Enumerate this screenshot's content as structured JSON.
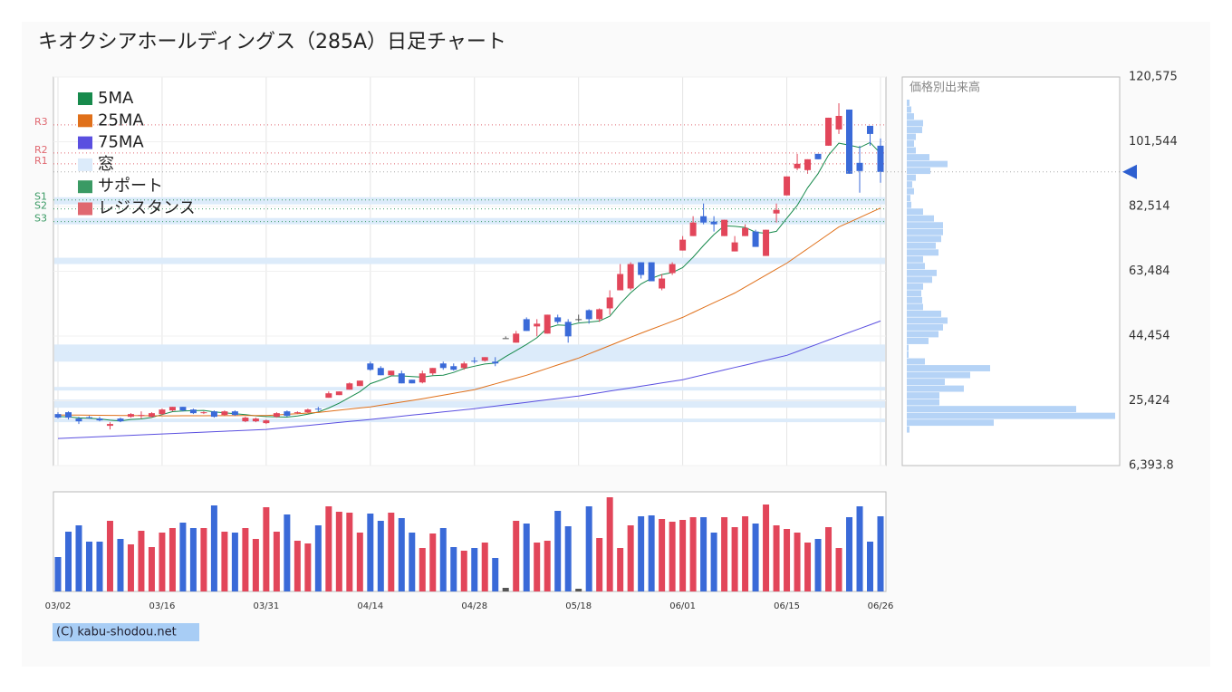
{
  "copyright": "(C) kabu-shodou.net",
  "chart_data": [
    {
      "type": "candlestick",
      "title": "キオクシアホールディングス（285A）日足チャート",
      "categories": [
        "03/02",
        null,
        null,
        null,
        null,
        null,
        null,
        null,
        null,
        null,
        "03/16",
        null,
        null,
        null,
        null,
        null,
        null,
        null,
        null,
        null,
        "03/31",
        null,
        null,
        null,
        null,
        null,
        null,
        null,
        null,
        null,
        "04/14",
        null,
        null,
        null,
        null,
        null,
        null,
        null,
        null,
        null,
        "04/28",
        null,
        null,
        null,
        null,
        null,
        null,
        null,
        null,
        null,
        "05/18",
        null,
        null,
        null,
        null,
        null,
        null,
        null,
        null,
        null,
        "06/01",
        null,
        null,
        null,
        null,
        null,
        null,
        null,
        null,
        null,
        "06/15",
        null,
        null,
        null,
        null,
        null,
        null,
        null,
        null,
        "06/26"
      ],
      "open": [
        21530,
        22060,
        20200,
        20600,
        20200,
        18080,
        20200,
        20730,
        21000,
        20730,
        21530,
        22590,
        23650,
        22860,
        21790,
        22320,
        21260,
        22320,
        19400,
        19400,
        18870,
        20730,
        22320,
        21790,
        22060,
        23120,
        26310,
        27100,
        28700,
        29760,
        36400,
        35070,
        32940,
        33480,
        31620,
        30820,
        33480,
        36400,
        35600,
        35070,
        37190,
        37190,
        36930,
        43830,
        42500,
        49410,
        47280,
        45160,
        49940,
        48610,
        49410,
        52060,
        49410,
        52590,
        57900,
        58430,
        66130,
        66130,
        58430,
        62950,
        69580,
        73830,
        79670,
        78080,
        73830,
        69320,
        73830,
        75160,
        67990,
        80470,
        85780,
        93740,
        93210,
        97990,
        100380,
        105160,
        111000,
        95340,
        106220,
        100380
      ],
      "high": [
        22060,
        22320,
        20730,
        21000,
        20730,
        19140,
        20470,
        21790,
        22320,
        22060,
        23120,
        23650,
        23650,
        23120,
        22320,
        22590,
        22590,
        22590,
        20730,
        20470,
        19930,
        22060,
        22590,
        22320,
        23120,
        23650,
        28170,
        28170,
        30820,
        31350,
        36930,
        35600,
        34270,
        34270,
        31620,
        34270,
        35070,
        36930,
        36400,
        36930,
        38250,
        38250,
        38250,
        44360,
        45950,
        49940,
        49410,
        50730,
        50730,
        49410,
        50730,
        52330,
        52590,
        57900,
        65600,
        66130,
        66130,
        66130,
        62680,
        66130,
        73830,
        79670,
        83390,
        79670,
        78610,
        73830,
        77280,
        75690,
        75690,
        83390,
        91350,
        97990,
        96400,
        97990,
        108610,
        112860,
        111000,
        100380,
        106220,
        102510
      ],
      "low": [
        20200,
        19930,
        18610,
        20200,
        19400,
        17010,
        19140,
        20470,
        20200,
        20470,
        21260,
        22320,
        22320,
        21530,
        21530,
        20470,
        21000,
        21000,
        19140,
        19140,
        18610,
        20470,
        20730,
        21530,
        21790,
        22320,
        26310,
        27100,
        28700,
        29760,
        34270,
        32940,
        32940,
        30550,
        30550,
        30550,
        32940,
        34540,
        34270,
        34540,
        36400,
        36930,
        35600,
        43830,
        42500,
        45950,
        44360,
        45160,
        48080,
        42500,
        48610,
        48080,
        48610,
        50730,
        57900,
        57900,
        61350,
        60560,
        57900,
        62410,
        69580,
        73830,
        77280,
        75160,
        73830,
        69320,
        73830,
        70650,
        67990,
        77810,
        85780,
        93210,
        92150,
        96400,
        100380,
        103830,
        92150,
        86575,
        100380,
        89500
      ],
      "close": [
        20470,
        20470,
        19400,
        20470,
        19670,
        18610,
        19400,
        21530,
        21260,
        21790,
        22860,
        23650,
        22590,
        21790,
        22060,
        20730,
        22320,
        21260,
        20470,
        20200,
        19670,
        21790,
        21000,
        22060,
        22860,
        22860,
        27630,
        28170,
        30550,
        31350,
        34540,
        32940,
        34270,
        30550,
        30550,
        33480,
        35070,
        35070,
        34540,
        36400,
        36930,
        38250,
        36400,
        43830,
        45160,
        45950,
        48080,
        50730,
        48610,
        44360,
        49410,
        49410,
        52330,
        55780,
        62680,
        65600,
        62410,
        60560,
        61350,
        65600,
        72770,
        77810,
        77810,
        77280,
        78610,
        71970,
        76220,
        70650,
        75690,
        81530,
        91350,
        95070,
        96400,
        96400,
        108610,
        109140,
        92150,
        92950,
        103830,
        92680
      ],
      "up_color": "#e2465a",
      "down_color": "#3a6ad8",
      "flat_color": "#555555",
      "ylim": [
        6393.8,
        120575
      ],
      "yticks": [
        {
          "value": 120575,
          "label": "120,575"
        },
        {
          "value": 101544,
          "label": "101,544"
        },
        {
          "value": 82514,
          "label": "82,514"
        },
        {
          "value": 63484,
          "label": "63,484"
        },
        {
          "value": 44454,
          "label": "44,454"
        },
        {
          "value": 25424,
          "label": "25,424"
        },
        {
          "value": 6393.8,
          "label": "6,393.8"
        }
      ],
      "grid": true,
      "legend": "top-left",
      "series": [
        {
          "name": "5MA",
          "color": "#178a4c",
          "values": [
            20800,
            20700,
            20400,
            20300,
            20096,
            19724,
            19510,
            19936,
            20094,
            20518,
            21368,
            22218,
            22430,
            22536,
            22590,
            22164,
            21898,
            21632,
            21368,
            20996,
            20784,
            20678,
            20626,
            20944,
            21476,
            22114,
            23282,
            24716,
            26414,
            28112,
            30448,
            31510,
            32730,
            32730,
            32570,
            32358,
            32784,
            32944,
            33742,
            34912,
            35602,
            36238,
            36504,
            38416,
            40168,
            41972,
            43938,
            46804,
            47706,
            47546,
            48276,
            48542,
            48862,
            50296,
            53960,
            57160,
            59760,
            61406,
            62520,
            63104,
            64538,
            67618,
            71068,
            74254,
            76856,
            76696,
            76378,
            74946,
            74628,
            75212,
            79088,
            82858,
            88008,
            92150,
            97566,
            101124,
            100540,
            99850,
            101336,
            98150
          ]
        },
        {
          "name": "25MA",
          "color": "#e0701a",
          "values": [
            21260,
            21230,
            21210,
            21180,
            21160,
            21130,
            21100,
            21080,
            21050,
            21030,
            21000,
            21010,
            21020,
            21030,
            21040,
            21050,
            21060,
            21070,
            21080,
            21090,
            21100,
            21280,
            21460,
            21640,
            21820,
            22000,
            22330,
            22660,
            22990,
            23320,
            23650,
            24120,
            24590,
            25060,
            25530,
            26000,
            26540,
            27080,
            27620,
            28160,
            28700,
            29550,
            30400,
            31240,
            32090,
            32940,
            33950,
            34960,
            35970,
            36980,
            37990,
            39210,
            40430,
            41660,
            42880,
            44100,
            45270,
            46440,
            47600,
            48770,
            49940,
            51370,
            52800,
            54240,
            55670,
            57100,
            58850,
            60610,
            62360,
            64120,
            65870,
            68000,
            70120,
            72250,
            74370,
            76500,
            77890,
            79280,
            80670,
            82060
          ]
        },
        {
          "name": "75MA",
          "color": "#5a4fe0",
          "values": [
            14360,
            14490,
            14630,
            14760,
            14890,
            15030,
            15160,
            15290,
            15420,
            15550,
            15690,
            15820,
            15950,
            16080,
            16220,
            16350,
            16480,
            16610,
            16750,
            16880,
            17010,
            17300,
            17590,
            17890,
            18180,
            18470,
            18760,
            19050,
            19350,
            19640,
            19930,
            20250,
            20570,
            20890,
            21210,
            21530,
            21840,
            22160,
            22480,
            22800,
            23120,
            23490,
            23860,
            24240,
            24610,
            24980,
            25350,
            25720,
            26100,
            26470,
            26840,
            27320,
            27800,
            28270,
            28750,
            29230,
            29710,
            30190,
            30660,
            31140,
            31620,
            32340,
            33050,
            33770,
            34490,
            35210,
            35920,
            36640,
            37360,
            38070,
            38790,
            39910,
            41030,
            42150,
            43280,
            44400,
            45520,
            46640,
            47760,
            48880
          ]
        }
      ],
      "gaps": {
        "name": "窓",
        "color": "#dcebfa",
        "ranges": [
          [
            83130,
            85250
          ],
          [
            77280,
            79140
          ],
          [
            65600,
            67460
          ],
          [
            36930,
            41970
          ],
          [
            28440,
            29500
          ],
          [
            23390,
            25780
          ],
          [
            19140,
            20200
          ]
        ]
      },
      "support": {
        "name": "サポート",
        "color": "#3a9a64",
        "levels": [
          {
            "label": "S1",
            "value": 84450
          },
          {
            "label": "S2",
            "value": 81800
          },
          {
            "label": "S3",
            "value": 78080
          }
        ]
      },
      "resistance": {
        "name": "レジスタンス",
        "color": "#e06870",
        "levels": [
          {
            "label": "R3",
            "value": 106490
          },
          {
            "label": "R2",
            "value": 98260
          },
          {
            "label": "R1",
            "value": 95070
          }
        ]
      }
    },
    {
      "type": "bar",
      "values": [
        38,
        66,
        73,
        55,
        55,
        78,
        58,
        52,
        67,
        49,
        65,
        70,
        76,
        70,
        70,
        95,
        66,
        65,
        70,
        58,
        93,
        66,
        85,
        56,
        53,
        73,
        94,
        88,
        87,
        65,
        86,
        78,
        87,
        81,
        65,
        48,
        64,
        70,
        49,
        45,
        48,
        54,
        37,
        4,
        78,
        75,
        54,
        56,
        89,
        72,
        3,
        94,
        59,
        104,
        48,
        73,
        83,
        84,
        80,
        77,
        79,
        82,
        82,
        65,
        82,
        71,
        83,
        75,
        96,
        73,
        69,
        65,
        54,
        58,
        71,
        48,
        82,
        94,
        55,
        83
      ],
      "ylim": [
        0,
        110
      ]
    },
    {
      "type": "histogram",
      "title": "価格別出来高",
      "orientation": "horizontal",
      "color": "#b5d3f6",
      "bins": [
        16000,
        18000,
        20000,
        22000,
        24000,
        26000,
        28000,
        30000,
        32000,
        34000,
        36000,
        38000,
        40000,
        42000,
        44000,
        46000,
        48000,
        50000,
        52000,
        54000,
        56000,
        58000,
        60000,
        62000,
        64000,
        66000,
        68000,
        70000,
        72000,
        74000,
        76000,
        78000,
        80000,
        82000,
        84000,
        86000,
        88000,
        90000,
        92000,
        94000,
        96000,
        98000,
        100000,
        102000,
        104000,
        106000,
        108000,
        110000,
        112000,
        114000
      ],
      "values": [
        3,
        96,
        230,
        187,
        36,
        36,
        63,
        42,
        70,
        92,
        20,
        2,
        2,
        24,
        35,
        40,
        45,
        38,
        18,
        17,
        16,
        18,
        28,
        33,
        20,
        18,
        35,
        32,
        38,
        40,
        40,
        30,
        18,
        5,
        4,
        8,
        6,
        10,
        26,
        45,
        25,
        10,
        8,
        10,
        17,
        18,
        8,
        5,
        3
      ],
      "xlim": [
        0,
        235
      ]
    }
  ]
}
